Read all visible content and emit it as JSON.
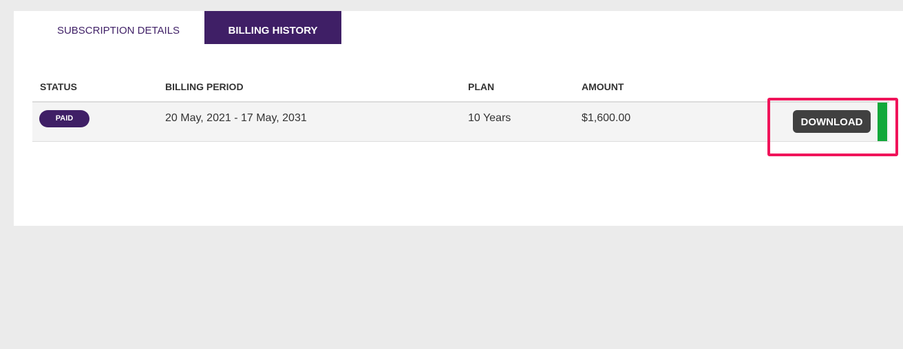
{
  "tabs": [
    {
      "label": "SUBSCRIPTION DETAILS",
      "active": false
    },
    {
      "label": "BILLING HISTORY",
      "active": true
    }
  ],
  "table": {
    "headers": [
      "STATUS",
      "BILLING PERIOD",
      "PLAN",
      "AMOUNT"
    ],
    "rows": [
      {
        "status": "PAID",
        "billing_period": "20 May, 2021 - 17 May, 2031",
        "plan": "10 Years",
        "amount": "$1,600.00",
        "action": "DOWNLOAD"
      }
    ]
  },
  "colors": {
    "brand": "#3f1f66",
    "highlight": "#f0145a",
    "indicator": "#12a83a",
    "button": "#404040"
  }
}
